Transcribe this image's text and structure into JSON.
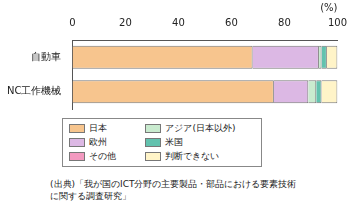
{
  "chart_data": {
    "type": "bar",
    "orientation": "horizontal",
    "stacked": true,
    "grid": false,
    "x_label": "(%)",
    "categories": [
      "自動車",
      "NC工作機械"
    ],
    "xlim": [
      0,
      100
    ],
    "xticks": [
      0,
      20,
      40,
      60,
      80,
      100
    ],
    "series": [
      {
        "name": "日本",
        "color": "#f7c58e",
        "values": [
          68,
          76
        ]
      },
      {
        "name": "欧州",
        "color": "#dcb8e4",
        "values": [
          25,
          13
        ]
      },
      {
        "name": "その他",
        "color": "#f39ac0",
        "values": [
          0,
          0
        ]
      },
      {
        "name": "アジア(日本以外)",
        "color": "#c9ebcf",
        "values": [
          1,
          3
        ]
      },
      {
        "name": "米国",
        "color": "#62c2ae",
        "values": [
          2,
          2
        ]
      },
      {
        "name": "判断できない",
        "color": "#fff4c8",
        "values": [
          4,
          6
        ]
      }
    ],
    "source": [
      "(出典)「我が国のICT分野の主要製品・部品における要素技術",
      "に関する調査研究」"
    ]
  }
}
